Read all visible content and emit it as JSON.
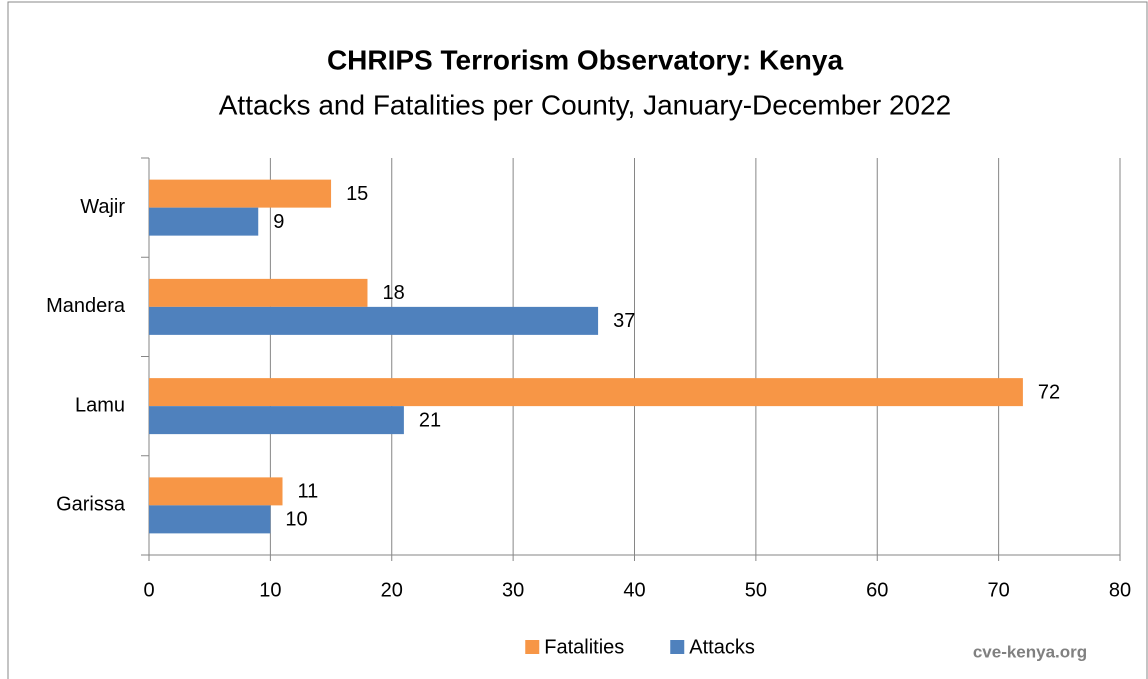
{
  "chart_data": {
    "type": "bar",
    "orientation": "horizontal",
    "title": "CHRIPS Terrorism Observatory: Kenya",
    "subtitle": "Attacks and Fatalities per County, January-December 2022",
    "categories": [
      "Garissa",
      "Lamu",
      "Mandera",
      "Wajir"
    ],
    "series": [
      {
        "name": "Fatalities",
        "color": "#f79646",
        "values": [
          11,
          72,
          18,
          15
        ]
      },
      {
        "name": "Attacks",
        "color": "#4f81bd",
        "values": [
          10,
          21,
          37,
          9
        ]
      }
    ],
    "xlim": [
      0,
      80
    ],
    "xticks": [
      0,
      10,
      20,
      30,
      40,
      50,
      60,
      70,
      80
    ],
    "grid": true,
    "legend": "bottom",
    "watermark": "cve-kenya.org"
  }
}
